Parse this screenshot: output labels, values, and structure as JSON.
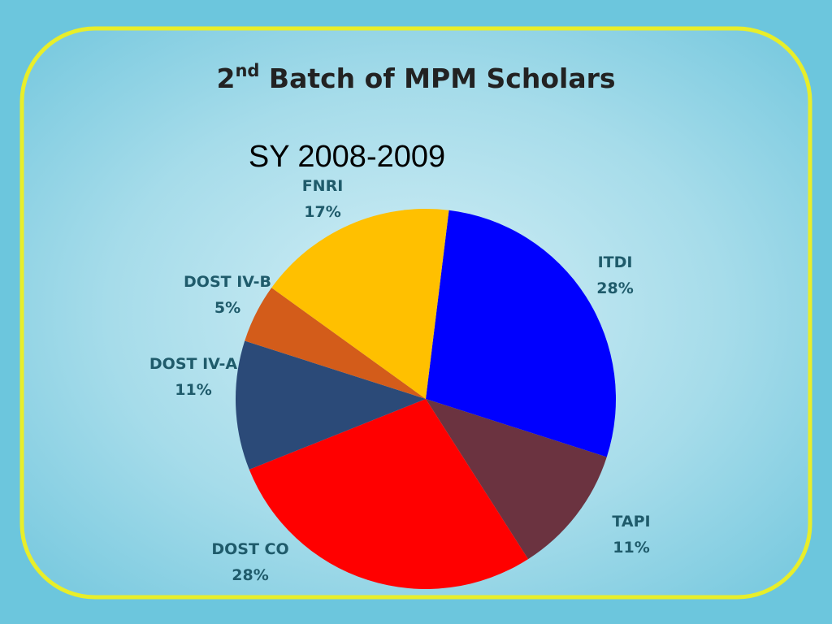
{
  "chart_data": {
    "type": "pie",
    "title": [
      "2",
      "nd",
      " Batch of MPM Scholars"
    ],
    "subtitle": "SY 2008-2009",
    "categories": [
      "ITDI",
      "TAPI",
      "DOST CO",
      "DOST IV-A",
      "DOST IV-B",
      "FNRI"
    ],
    "values": [
      28,
      11,
      28,
      11,
      5,
      17
    ],
    "value_labels": [
      "28%",
      "11%",
      "28%",
      "11%",
      "5%",
      "17%"
    ],
    "colors": [
      "#0000ff",
      "#6b3340",
      "#ff0000",
      "#2b4a78",
      "#d35c1a",
      "#ffc000"
    ]
  }
}
